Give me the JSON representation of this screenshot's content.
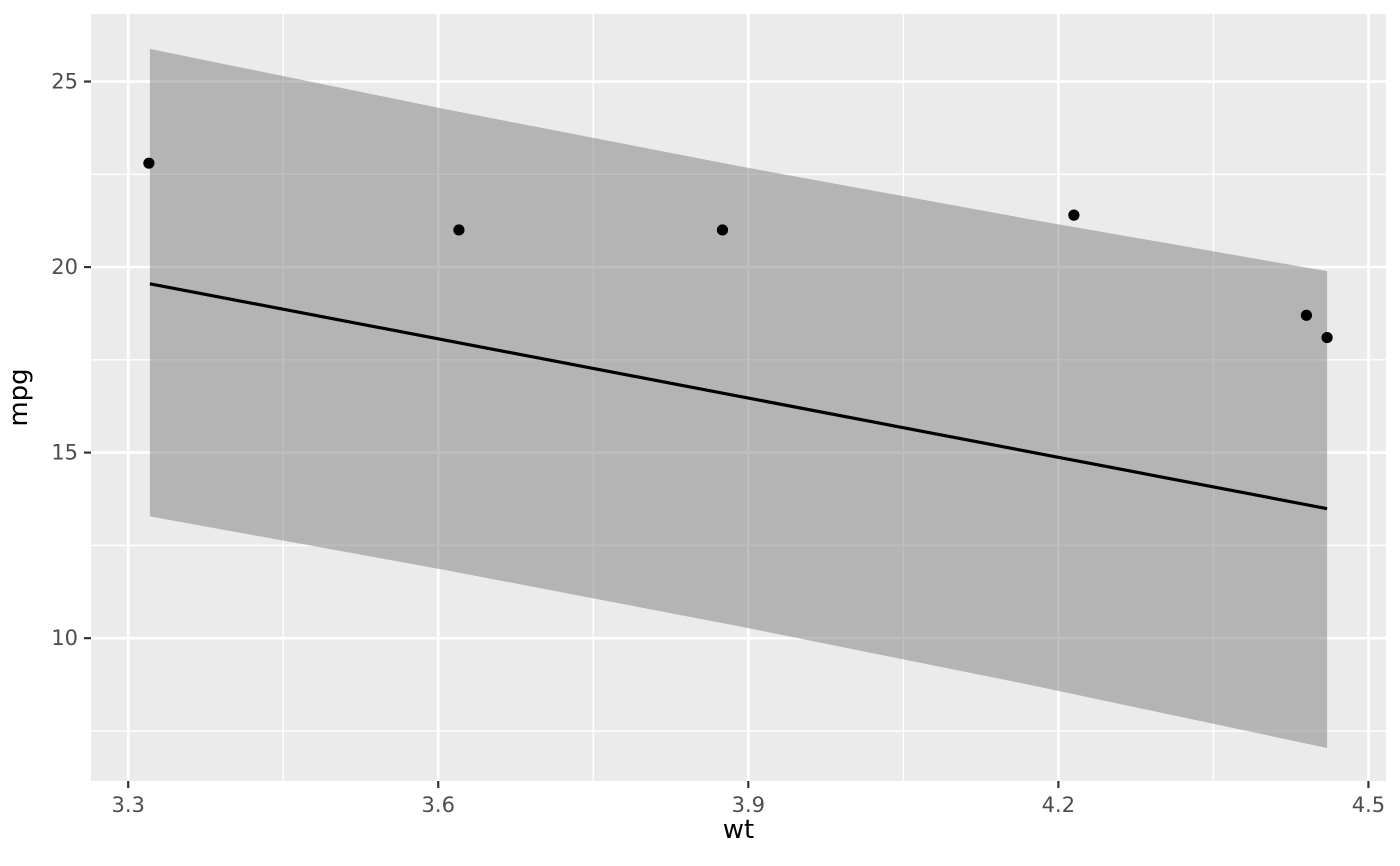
{
  "figure": {
    "background": "#FFFFFF"
  },
  "chart_data": {
    "type": "scatter",
    "title": "",
    "xlabel": "wt",
    "ylabel": "mpg",
    "legend": "none",
    "grid": "on",
    "x_axis": {
      "range": [
        3.264,
        4.517
      ],
      "major_ticks": [
        3.3,
        3.6,
        3.9,
        4.2,
        4.5
      ],
      "minor_ticks": [
        3.45,
        3.75,
        4.05,
        4.35
      ],
      "tick_labels": [
        "3.3",
        "3.6",
        "3.9",
        "4.2",
        "4.5"
      ]
    },
    "y_axis": {
      "range": [
        6.15,
        26.82
      ],
      "major_ticks": [
        10,
        15,
        20,
        25
      ],
      "minor_ticks": [
        7.5,
        12.5,
        17.5,
        22.5
      ],
      "tick_labels": [
        "10",
        "15",
        "20",
        "25"
      ]
    },
    "points": [
      {
        "wt": 3.32,
        "mpg": 22.8
      },
      {
        "wt": 3.62,
        "mpg": 21.0
      },
      {
        "wt": 3.875,
        "mpg": 21.0
      },
      {
        "wt": 4.215,
        "mpg": 21.4
      },
      {
        "wt": 4.44,
        "mpg": 18.7
      },
      {
        "wt": 4.46,
        "mpg": 18.1
      }
    ],
    "regression_line": {
      "x": [
        3.321,
        4.46
      ],
      "mpg": [
        19.55,
        13.49
      ]
    },
    "confidence_band": {
      "upper": [
        {
          "wt": 3.321,
          "mpg": 25.88
        },
        {
          "wt": 3.606,
          "mpg": 24.26
        },
        {
          "wt": 3.891,
          "mpg": 22.72
        },
        {
          "wt": 4.176,
          "mpg": 21.27
        },
        {
          "wt": 4.46,
          "mpg": 19.89
        }
      ],
      "lower": [
        {
          "wt": 3.321,
          "mpg": 13.28
        },
        {
          "wt": 3.606,
          "mpg": 11.84
        },
        {
          "wt": 3.891,
          "mpg": 10.32
        },
        {
          "wt": 4.176,
          "mpg": 8.72
        },
        {
          "wt": 4.46,
          "mpg": 7.04
        }
      ]
    }
  },
  "style": {
    "panel_bg": "#EBEBEB",
    "grid_color": "#FFFFFF",
    "band_fill": "#7F7F7F",
    "band_opacity": 0.51,
    "line_color": "#000000",
    "point_color": "#000000",
    "tick_mark_color": "#333333",
    "tick_label_color": "#4D4D4D",
    "axis_title_color": "#000000"
  }
}
